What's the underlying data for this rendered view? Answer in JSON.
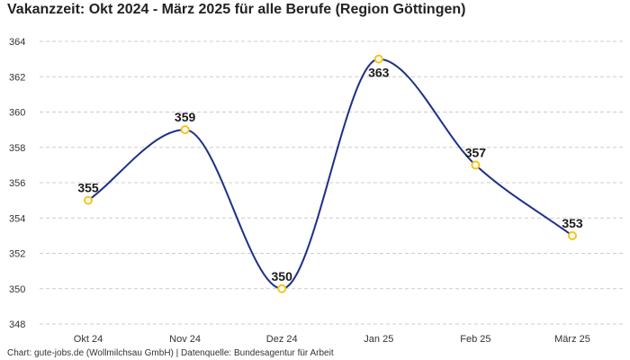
{
  "title": "Vakanzzeit: Okt 2024 - März 2025 für alle Berufe (Region Göttingen)",
  "footer": "Chart: gute-jobs.de (Wollmilchsau GmbH) | Datenquelle: Bundesagentur für Arbeit",
  "colors": {
    "line": "#1f2f87",
    "marker": "#f5c518",
    "grid": "#cccccc"
  },
  "chart_data": {
    "type": "line",
    "title": "Vakanzzeit: Okt 2024 - März 2025 für alle Berufe (Region Göttingen)",
    "xlabel": "",
    "ylabel": "",
    "categories": [
      "Okt 24",
      "Nov 24",
      "Dez 24",
      "Jan 25",
      "Feb 25",
      "März 25"
    ],
    "values": [
      355,
      359,
      350,
      363,
      357,
      353
    ],
    "data_labels": [
      "355",
      "359",
      "350",
      "363",
      "357",
      "353"
    ],
    "ylim": [
      348,
      364
    ],
    "yticks": [
      348,
      350,
      352,
      354,
      356,
      358,
      360,
      362,
      364
    ],
    "grid": true,
    "smooth": true
  }
}
